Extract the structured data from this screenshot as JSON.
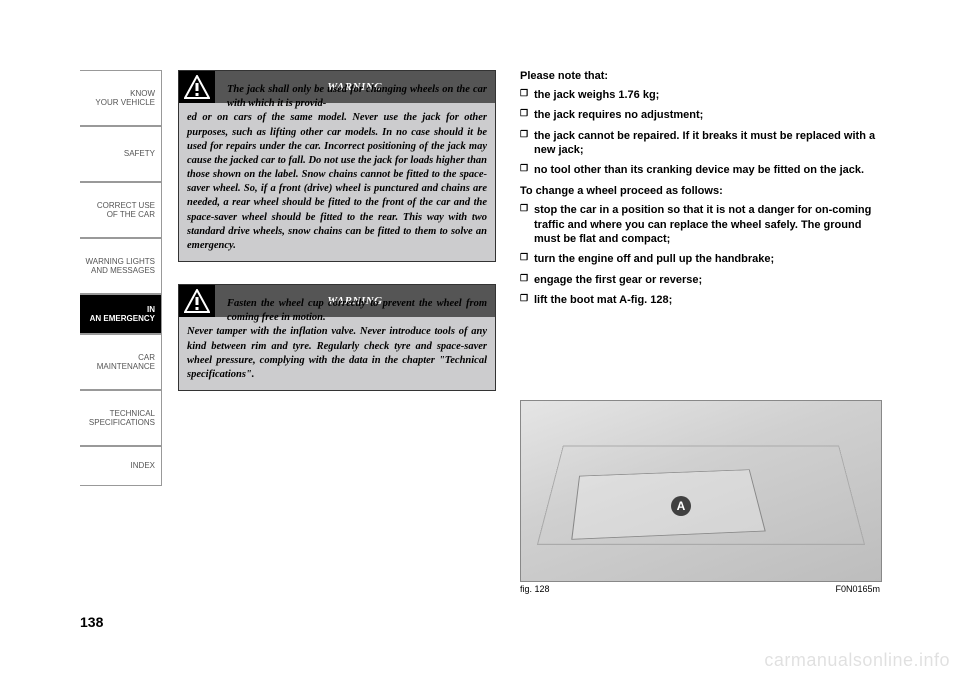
{
  "sidebar": {
    "tabs": [
      {
        "label": "KNOW\nYOUR VEHICLE"
      },
      {
        "label": "SAFETY"
      },
      {
        "label": "CORRECT USE\nOF THE CAR"
      },
      {
        "label": "WARNING LIGHTS\nAND MESSAGES"
      },
      {
        "label": "IN\nAN EMERGENCY",
        "active": true
      },
      {
        "label": "CAR\nMAINTENANCE"
      },
      {
        "label": "TECHNICAL\nSPECIFICATIONS"
      },
      {
        "label": "INDEX"
      }
    ]
  },
  "page_number": "138",
  "warnings": {
    "title": "WARNING",
    "box1_first": "The jack shall only be used for changing wheels on the car with which it is provid-",
    "box1_rest": "ed or on cars of the same model. Never use the jack for other purposes, such as lifting other car models. In no case should it be used for repairs under the car. Incorrect positioning of the jack may cause the jacked car to fall. Do not use the jack for loads higher than those shown on the label. Snow chains cannot be fitted to the space-saver wheel. So, if a front (drive) wheel is punctured and chains are needed, a rear wheel should be fitted to the front of the car and the space-saver wheel should be fitted to the rear. This way with two standard drive wheels, snow chains can be fitted to them to solve an emergency.",
    "box2_first": "Fasten the wheel cup correctly to prevent the wheel from coming free in motion.",
    "box2_rest": "Never tamper with the inflation valve. Never introduce tools of any kind between rim and tyre. Regularly check tyre and space-saver wheel pressure, complying with the data in the chapter \"Technical specifications\"."
  },
  "right": {
    "intro": "Please note that:",
    "b1": "the jack weighs 1.76 kg;",
    "b2": "the jack requires no adjustment;",
    "b3": "the jack cannot be repaired. If it breaks it must be replaced with a new jack;",
    "b4": "no tool other than its cranking device may be fitted on the jack.",
    "proc": "To change a wheel proceed as follows:",
    "p1": "stop the car in a position so that it is not a danger for on-coming traffic and where you can replace the wheel safely. The ground must be flat and compact;",
    "p2": "turn the engine off and pull up the handbrake;",
    "p3": "engage the first gear or reverse;",
    "p4": "lift the boot mat A-fig. 128;"
  },
  "figure": {
    "marker": "A",
    "caption_left": "fig. 128",
    "caption_right": "F0N0165m"
  },
  "watermark": "carmanualsonline.info",
  "colors": {
    "warning_bg": "#ccccce",
    "warning_title_bg": "#555555",
    "icon_bg": "#000000",
    "active_tab_bg": "#000000"
  }
}
